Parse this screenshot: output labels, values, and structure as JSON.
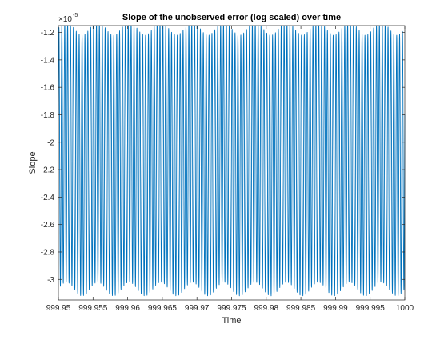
{
  "chart_data": {
    "type": "line",
    "title": "Slope of the unobserved error (log scaled) over time",
    "xlabel": "Time",
    "ylabel": "Slope",
    "xlim": [
      999.95,
      1000
    ],
    "ylim": [
      -3.15e-05,
      -1.15e-05
    ],
    "x_ticks": [
      "999.95",
      "999.955",
      "999.96",
      "999.965",
      "999.97",
      "999.975",
      "999.98",
      "999.985",
      "999.99",
      "999.995",
      "1000"
    ],
    "y_ticks": [
      "-1.2",
      "-1.4",
      "-1.6",
      "-1.8",
      "-2",
      "-2.2",
      "-2.4",
      "-2.6",
      "-2.8",
      "-3"
    ],
    "y_exponent": {
      "base": "×10",
      "power": "-5"
    },
    "grid": false,
    "legend": "none",
    "series": [
      {
        "color": "#0072BD",
        "signal": {
          "form": "oscillation",
          "mean": -2.12e-05,
          "carrier_amplitude": 9.5e-06,
          "carrier_cycles": 120,
          "beat_amplitude": 5e-07,
          "beat_cycles": 11,
          "samples": 3600
        }
      }
    ]
  }
}
